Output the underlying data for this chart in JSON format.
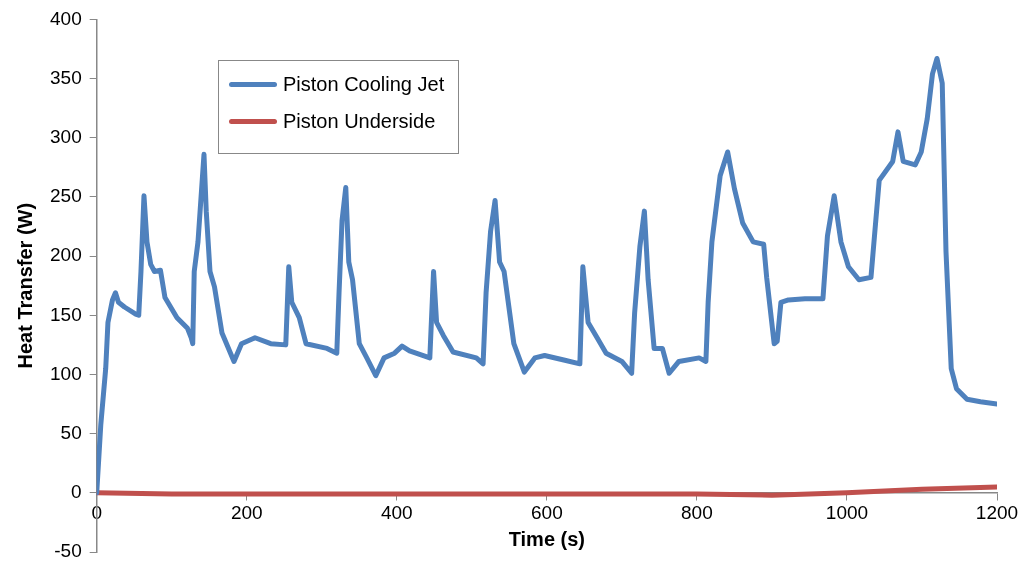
{
  "chart_data": {
    "type": "line",
    "xlabel": "Time (s)",
    "ylabel": "Heat Transfer (W)",
    "xlim": [
      0,
      1200
    ],
    "xticks": [
      0,
      200,
      400,
      600,
      800,
      1000,
      1200
    ],
    "ylim": [
      -50,
      400
    ],
    "yticks": [
      -50,
      0,
      50,
      100,
      150,
      200,
      250,
      300,
      350,
      400
    ],
    "grid": false,
    "legend": "top left",
    "marker": "none",
    "line_style": "solid",
    "series": [
      {
        "name": "Piston Cooling Jet",
        "color": "#4f81bd",
        "x": [
          0,
          5.5,
          12,
          15,
          21,
          25,
          29,
          37,
          52,
          56,
          59,
          63,
          67,
          72,
          77,
          85,
          91,
          107,
          121,
          126,
          128,
          130,
          135,
          143,
          146,
          151,
          157,
          167,
          183,
          193,
          211,
          232,
          252,
          256,
          260,
          270,
          279,
          307,
          320,
          323,
          327,
          332,
          336,
          341,
          350,
          360,
          372,
          383,
          397,
          407,
          417,
          444,
          449,
          453,
          462,
          475,
          506,
          515,
          519,
          525,
          531,
          537,
          543,
          556,
          570,
          584,
          597,
          624,
          644,
          648,
          655,
          667,
          679,
          700,
          713,
          717,
          724,
          730,
          735,
          743,
          754,
          763,
          776,
          803,
          812,
          815,
          820,
          831,
          841,
          850,
          861,
          875,
          889,
          893,
          903,
          907,
          912,
          922,
          944,
          968,
          974,
          983,
          992,
          1002,
          1016,
          1032,
          1043,
          1061,
          1068,
          1075,
          1091,
          1099,
          1107,
          1114,
          1120,
          1127,
          1132,
          1139,
          1146,
          1160,
          1178,
          1200
        ],
        "values": [
          0,
          58,
          105,
          144,
          163,
          169,
          161,
          157,
          151,
          150,
          187,
          251,
          212,
          193,
          187,
          188,
          165,
          148,
          139,
          131,
          126,
          187,
          212,
          286,
          238,
          187,
          174,
          135,
          111,
          126,
          131,
          126,
          125,
          191,
          161,
          148,
          126,
          122,
          118,
          169,
          230,
          258,
          195,
          180,
          126,
          114,
          99,
          114,
          118,
          124,
          120,
          114,
          187,
          144,
          133,
          119,
          114,
          109,
          169,
          221,
          247,
          195,
          187,
          126,
          102,
          114,
          116,
          112,
          109,
          191,
          144,
          131,
          118,
          111,
          101,
          152,
          208,
          238,
          180,
          122,
          122,
          101,
          111,
          114,
          111,
          161,
          212,
          268,
          288,
          257,
          228,
          212,
          210,
          182,
          126,
          128,
          161,
          163,
          164,
          164,
          217,
          251,
          212,
          191,
          180,
          182,
          264,
          280,
          305,
          280,
          277,
          288,
          316,
          354,
          367,
          346,
          204,
          105,
          88,
          79,
          77,
          75
        ]
      },
      {
        "name": "Piston Underside",
        "color": "#c0504d",
        "x": [
          0,
          100,
          200,
          300,
          400,
          500,
          600,
          700,
          800,
          900,
          1000,
          1100,
          1200
        ],
        "values": [
          0,
          -1,
          -1,
          -1,
          -1,
          -1,
          -1,
          -1,
          -1,
          -2,
          0,
          3,
          5
        ]
      }
    ]
  }
}
